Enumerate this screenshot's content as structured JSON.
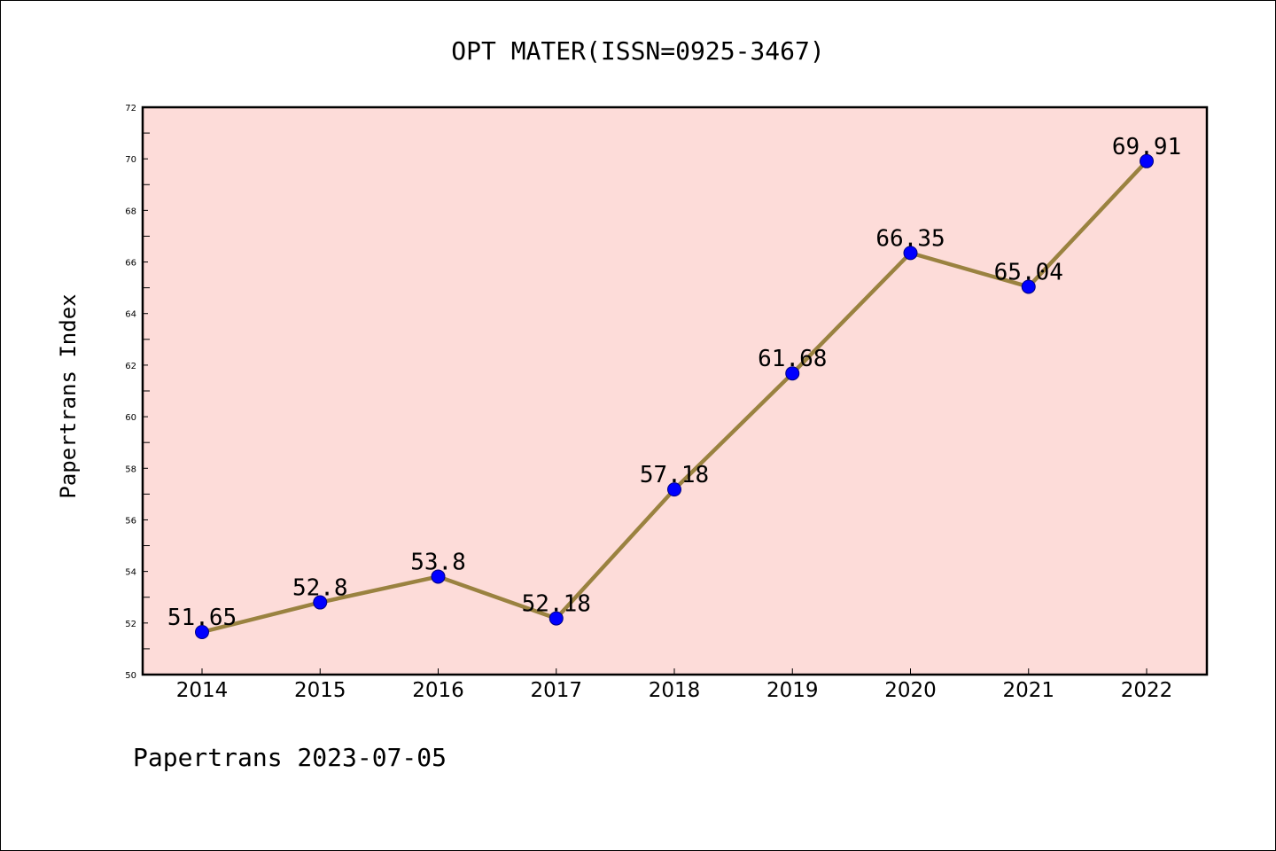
{
  "chart_data": {
    "type": "line",
    "title": "OPT MATER(ISSN=0925-3467)",
    "ylabel": "Papertrans Index",
    "xlabel": "",
    "footer": "Papertrans 2023-07-05",
    "categories": [
      "2014",
      "2015",
      "2016",
      "2017",
      "2018",
      "2019",
      "2020",
      "2021",
      "2022"
    ],
    "values": [
      51.65,
      52.8,
      53.8,
      52.18,
      57.18,
      61.68,
      66.35,
      65.04,
      69.91
    ],
    "data_labels": [
      "51.65",
      "52.8",
      "53.8",
      "52.18",
      "57.18",
      "61.68",
      "66.35",
      "65.04",
      "69.91"
    ],
    "ylim": [
      50,
      72
    ],
    "yticks": [
      50,
      52,
      54,
      56,
      58,
      60,
      62,
      64,
      66,
      68,
      70,
      72
    ],
    "grid": false,
    "colors": {
      "plot_background": "#fddcd9",
      "line": "#9a8240",
      "marker": "#0000ff",
      "marker_edge": "#000080"
    }
  }
}
